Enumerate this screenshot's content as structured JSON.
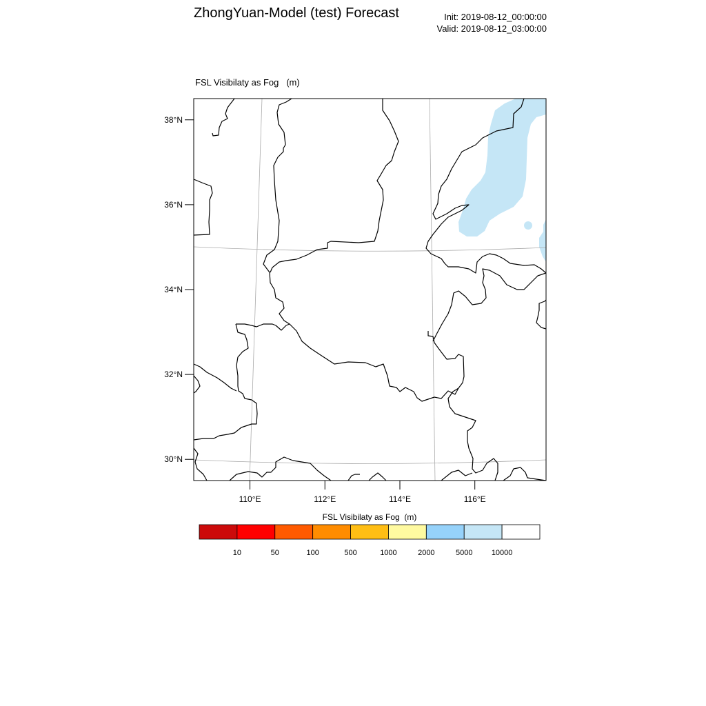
{
  "header": {
    "title": "ZhongYuan-Model (test) Forecast",
    "init": "Init: 2019-08-12_00:00:00",
    "valid": "Valid: 2019-08-12_03:00:00",
    "subtitle": "FSL Visibilaty as Fog   (m)"
  },
  "map": {
    "lon_range": [
      108.5,
      117.9
    ],
    "lat_range": [
      29.5,
      38.5
    ],
    "lat_ticks": [
      {
        "value": 38,
        "label": "38°N"
      },
      {
        "value": 36,
        "label": "36°N"
      },
      {
        "value": 34,
        "label": "34°N"
      },
      {
        "value": 32,
        "label": "32°N"
      },
      {
        "value": 30,
        "label": "30°N"
      }
    ],
    "lon_ticks": [
      {
        "value": 110,
        "label": "110°E"
      },
      {
        "value": 112,
        "label": "112°E"
      },
      {
        "value": 114,
        "label": "114°E"
      },
      {
        "value": 116,
        "label": "116°E"
      }
    ],
    "fog_color": "#c5e6f6",
    "boundary_color": "#000000",
    "grid_color": "#aaaaaa"
  },
  "colorbar": {
    "title": "FSL Visibilaty as Fog  (m)",
    "colors": [
      "#cc0a0a",
      "#ff0000",
      "#ff5a00",
      "#ff8c00",
      "#ffbe14",
      "#fffaa0",
      "#96d2fa",
      "#c5e6f6",
      "#ffffff"
    ],
    "labels": [
      "10",
      "50",
      "100",
      "500",
      "1000",
      "2000",
      "5000",
      "10000"
    ]
  }
}
